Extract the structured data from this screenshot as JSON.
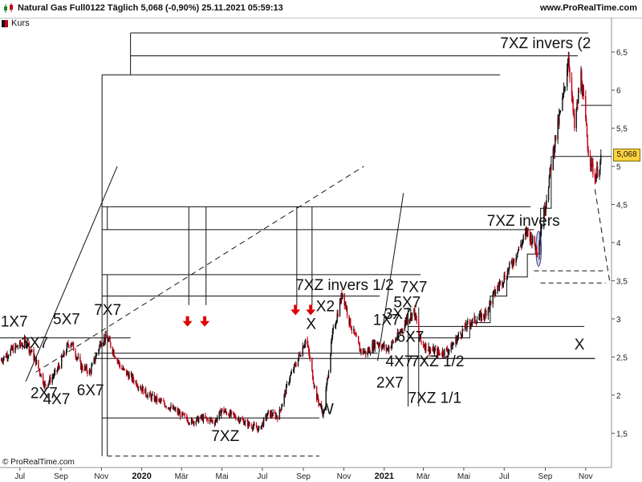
{
  "header": {
    "title": "Natural Gas Full0122 Täglich 5,068 (-0,90%) 25.11.2021 05:59:13",
    "site": "www.ProRealTime.com",
    "icon": "candlestick-chart-icon"
  },
  "legend": {
    "label": "Kurs"
  },
  "footer": {
    "copyright": "© ProRealTime.com"
  },
  "colors": {
    "up": "#111111",
    "down": "#c00014",
    "lines": "#111111",
    "marker": "#dd0000",
    "badge": "#ffd23f"
  },
  "chart_data": {
    "type": "candlestick",
    "title": "Natural Gas Full0122 Täglich",
    "last_price": "5,068",
    "x_range": [
      "2019-06-01",
      "2021-12-10"
    ],
    "ylim": [
      1.05,
      6.95
    ],
    "y_ticks": [
      {
        "v": 1.5,
        "label": "1,5"
      },
      {
        "v": 2,
        "label": "2"
      },
      {
        "v": 2.5,
        "label": "2,5"
      },
      {
        "v": 3,
        "label": "3"
      },
      {
        "v": 3.5,
        "label": "3,5"
      },
      {
        "v": 4,
        "label": "4"
      },
      {
        "v": 4.5,
        "label": "4,5"
      },
      {
        "v": 5,
        "label": "5"
      },
      {
        "v": 5.5,
        "label": "5,5"
      },
      {
        "v": 6,
        "label": "6"
      },
      {
        "v": 6.5,
        "label": "6,5"
      }
    ],
    "x_ticks": [
      {
        "date": "2019-07-01",
        "label": "Jul",
        "bold": false
      },
      {
        "date": "2019-09-01",
        "label": "Sep",
        "bold": false
      },
      {
        "date": "2019-11-01",
        "label": "Nov",
        "bold": false
      },
      {
        "date": "2020-01-01",
        "label": "2020",
        "bold": true
      },
      {
        "date": "2020-03-01",
        "label": "Mär",
        "bold": false
      },
      {
        "date": "2020-05-01",
        "label": "Mai",
        "bold": false
      },
      {
        "date": "2020-07-01",
        "label": "Jul",
        "bold": false
      },
      {
        "date": "2020-09-01",
        "label": "Sep",
        "bold": false
      },
      {
        "date": "2020-11-01",
        "label": "Nov",
        "bold": false
      },
      {
        "date": "2021-01-01",
        "label": "2021",
        "bold": true
      },
      {
        "date": "2021-03-01",
        "label": "Mär",
        "bold": false
      },
      {
        "date": "2021-05-01",
        "label": "Mai",
        "bold": false
      },
      {
        "date": "2021-07-01",
        "label": "Jul",
        "bold": false
      },
      {
        "date": "2021-09-01",
        "label": "Sep",
        "bold": false
      },
      {
        "date": "2021-11-01",
        "label": "Nov",
        "bold": false
      }
    ],
    "price_path": [
      [
        "2019-06-01",
        2.45
      ],
      [
        "2019-06-20",
        2.6
      ],
      [
        "2019-07-10",
        2.7
      ],
      [
        "2019-07-25",
        2.45
      ],
      [
        "2019-08-08",
        2.12
      ],
      [
        "2019-08-25",
        2.3
      ],
      [
        "2019-09-15",
        2.72
      ],
      [
        "2019-10-01",
        2.38
      ],
      [
        "2019-10-15",
        2.3
      ],
      [
        "2019-11-01",
        2.72
      ],
      [
        "2019-11-10",
        2.75
      ],
      [
        "2019-12-01",
        2.35
      ],
      [
        "2019-12-20",
        2.2
      ],
      [
        "2020-01-10",
        2.0
      ],
      [
        "2020-02-01",
        1.9
      ],
      [
        "2020-02-20",
        1.8
      ],
      [
        "2020-03-15",
        1.65
      ],
      [
        "2020-04-01",
        1.7
      ],
      [
        "2020-04-20",
        1.65
      ],
      [
        "2020-05-01",
        1.8
      ],
      [
        "2020-05-20",
        1.72
      ],
      [
        "2020-06-10",
        1.62
      ],
      [
        "2020-06-26",
        1.55
      ],
      [
        "2020-07-10",
        1.76
      ],
      [
        "2020-07-25",
        1.72
      ],
      [
        "2020-08-10",
        2.2
      ],
      [
        "2020-08-25",
        2.5
      ],
      [
        "2020-09-05",
        2.75
      ],
      [
        "2020-09-20",
        2.0
      ],
      [
        "2020-10-01",
        1.75
      ],
      [
        "2020-10-15",
        2.8
      ],
      [
        "2020-10-30",
        3.35
      ],
      [
        "2020-11-10",
        2.95
      ],
      [
        "2020-11-25",
        2.6
      ],
      [
        "2020-12-05",
        2.55
      ],
      [
        "2020-12-20",
        2.7
      ],
      [
        "2021-01-05",
        2.6
      ],
      [
        "2021-01-20",
        2.75
      ],
      [
        "2021-02-05",
        3.0
      ],
      [
        "2021-02-15",
        3.1
      ],
      [
        "2021-02-25",
        2.7
      ],
      [
        "2021-03-10",
        2.6
      ],
      [
        "2021-03-25",
        2.55
      ],
      [
        "2021-04-10",
        2.6
      ],
      [
        "2021-04-25",
        2.8
      ],
      [
        "2021-05-10",
        2.95
      ],
      [
        "2021-06-01",
        3.05
      ],
      [
        "2021-06-20",
        3.4
      ],
      [
        "2021-07-05",
        3.6
      ],
      [
        "2021-07-25",
        3.95
      ],
      [
        "2021-08-05",
        4.15
      ],
      [
        "2021-08-20",
        3.9
      ],
      [
        "2021-09-01",
        4.5
      ],
      [
        "2021-09-15",
        5.3
      ],
      [
        "2021-09-28",
        5.9
      ],
      [
        "2021-10-06",
        6.45
      ],
      [
        "2021-10-15",
        5.5
      ],
      [
        "2021-10-25",
        6.2
      ],
      [
        "2021-11-05",
        5.2
      ],
      [
        "2021-11-15",
        4.85
      ],
      [
        "2021-11-24",
        5.07
      ]
    ],
    "annotations": [
      {
        "text": "1X7",
        "date": "2019-06-02",
        "price": 2.9,
        "anchor": "start"
      },
      {
        "text": "3X7",
        "date": "2019-07-03",
        "price": 2.62,
        "anchor": "start"
      },
      {
        "text": "2X7",
        "date": "2019-07-17",
        "price": 1.96,
        "anchor": "start"
      },
      {
        "text": "4X7",
        "date": "2019-08-05",
        "price": 1.88,
        "anchor": "start"
      },
      {
        "text": "5X7",
        "date": "2019-08-20",
        "price": 2.93,
        "anchor": "start"
      },
      {
        "text": "6X7",
        "date": "2019-09-25",
        "price": 2.0,
        "anchor": "start"
      },
      {
        "text": "7X7",
        "date": "2019-10-21",
        "price": 3.05,
        "anchor": "start"
      },
      {
        "text": "7XZ",
        "date": "2020-04-15",
        "price": 1.4,
        "anchor": "start"
      },
      {
        "text": "7XZ invers 1/2",
        "date": "2020-08-20",
        "price": 3.38,
        "anchor": "start"
      },
      {
        "text": "X",
        "date": "2020-09-05",
        "price": 2.87,
        "anchor": "start"
      },
      {
        "text": "X2",
        "date": "2020-09-20",
        "price": 3.1,
        "anchor": "start"
      },
      {
        "text": "W",
        "date": "2020-09-25",
        "price": 1.75,
        "anchor": "start"
      },
      {
        "text": "1X7",
        "date": "2020-12-15",
        "price": 2.92,
        "anchor": "start"
      },
      {
        "text": "3X7",
        "date": "2021-01-01",
        "price": 3.0,
        "anchor": "start"
      },
      {
        "text": "5X7",
        "date": "2021-01-15",
        "price": 3.15,
        "anchor": "start"
      },
      {
        "text": "7X7",
        "date": "2021-01-25",
        "price": 3.35,
        "anchor": "start"
      },
      {
        "text": "6X7",
        "date": "2021-01-20",
        "price": 2.7,
        "anchor": "start"
      },
      {
        "text": "2X7",
        "date": "2020-12-20",
        "price": 2.1,
        "anchor": "start"
      },
      {
        "text": "4X7",
        "date": "2021-01-03",
        "price": 2.38,
        "anchor": "start"
      },
      {
        "text": "7XZ 1/2",
        "date": "2021-02-10",
        "price": 2.38,
        "anchor": "start"
      },
      {
        "text": "7XZ 1/1",
        "date": "2021-02-06",
        "price": 1.9,
        "anchor": "start"
      },
      {
        "text": "7XZ invers",
        "date": "2021-06-05",
        "price": 4.22,
        "anchor": "start"
      },
      {
        "text": "7XZ invers (2",
        "date": "2021-06-25",
        "price": 6.55,
        "anchor": "start"
      },
      {
        "text": "X",
        "date": "2021-10-15",
        "price": 2.6,
        "anchor": "start"
      }
    ],
    "arrows": [
      {
        "date": "2020-03-10",
        "price": 2.95
      },
      {
        "date": "2020-04-05",
        "price": 2.95
      },
      {
        "date": "2020-08-20",
        "price": 3.1
      },
      {
        "date": "2020-09-12",
        "price": 3.1
      }
    ],
    "hlines": [
      {
        "d1": "2019-06-01",
        "d2": "2019-12-15",
        "y": 2.75,
        "dash": false
      },
      {
        "d1": "2019-10-21",
        "d2": "2020-12-22",
        "y": 2.55,
        "dash": false
      },
      {
        "d1": "2019-10-21",
        "d2": "2021-11-15",
        "y": 2.48,
        "dash": false
      },
      {
        "d1": "2019-11-02",
        "d2": "2021-06-25",
        "y": 6.2,
        "dash": false
      },
      {
        "d1": "2019-12-15",
        "d2": "2021-10-20",
        "y": 6.45,
        "dash": false
      },
      {
        "d1": "2019-12-15",
        "d2": "2021-11-05",
        "y": 6.75,
        "dash": false
      },
      {
        "d1": "2019-11-02",
        "d2": "2021-08-10",
        "y": 4.47,
        "dash": false
      },
      {
        "d1": "2019-11-02",
        "d2": "2021-08-15",
        "y": 4.17,
        "dash": false
      },
      {
        "d1": "2019-11-02",
        "d2": "2021-02-25",
        "y": 3.58,
        "dash": false
      },
      {
        "d1": "2019-11-02",
        "d2": "2020-12-25",
        "y": 3.3,
        "dash": false
      },
      {
        "d1": "2019-11-02",
        "d2": "2020-09-25",
        "y": 1.7,
        "dash": false
      },
      {
        "d1": "2019-11-10",
        "d2": "2020-09-25",
        "y": 1.2,
        "dash": true
      },
      {
        "d1": "2021-02-06",
        "d2": "2021-10-30",
        "y": 2.9,
        "dash": false
      },
      {
        "d1": "2021-02-06",
        "d2": "2021-11-15",
        "y": 2.48,
        "dash": false
      },
      {
        "d1": "2021-08-15",
        "d2": "2021-12-01",
        "y": 3.63,
        "dash": true
      },
      {
        "d1": "2021-08-25",
        "d2": "2021-12-01",
        "y": 3.47,
        "dash": true
      },
      {
        "d1": "2021-10-15",
        "d2": "2021-12-10",
        "y": 5.13,
        "dash": false
      },
      {
        "d1": "2021-10-25",
        "d2": "2021-12-10",
        "y": 5.8,
        "dash": false
      }
    ],
    "vlines": [
      {
        "d": "2019-11-02",
        "y1": 1.2,
        "y2": 6.2
      },
      {
        "d": "2019-11-10",
        "y1": 1.2,
        "y2": 3.58
      },
      {
        "d": "2019-12-15",
        "y1": 6.2,
        "y2": 6.75
      },
      {
        "d": "2019-11-10",
        "y1": 4.17,
        "y2": 4.47
      },
      {
        "d": "2020-03-12",
        "y1": 3.18,
        "y2": 4.47
      },
      {
        "d": "2020-04-07",
        "y1": 3.18,
        "y2": 4.47
      },
      {
        "d": "2020-08-22",
        "y1": 3.18,
        "y2": 4.47
      },
      {
        "d": "2020-09-14",
        "y1": 3.18,
        "y2": 4.47
      },
      {
        "d": "2021-02-06",
        "y1": 1.85,
        "y2": 3.15
      },
      {
        "d": "2021-02-22",
        "y1": 1.85,
        "y2": 3.15
      }
    ],
    "trend_lines": [
      {
        "d1": "2019-07-10",
        "p1": 2.18,
        "d2": "2019-11-25",
        "p2": 5.0,
        "dash": false
      },
      {
        "d1": "2019-07-25",
        "p1": 2.3,
        "d2": "2020-12-01",
        "p2": 5.0,
        "dash": true
      },
      {
        "d1": "2020-12-22",
        "p1": 2.45,
        "d2": "2021-01-30",
        "p2": 4.65,
        "dash": false
      },
      {
        "d1": "2021-11-15",
        "p1": 4.7,
        "d2": "2021-12-08",
        "p2": 3.45,
        "dash": true
      }
    ],
    "step_line": [
      [
        "2021-02-06",
        2.75
      ],
      [
        "2021-05-10",
        2.75
      ],
      [
        "2021-05-10",
        2.95
      ],
      [
        "2021-06-10",
        2.95
      ],
      [
        "2021-06-10",
        3.3
      ],
      [
        "2021-07-05",
        3.3
      ],
      [
        "2021-07-05",
        3.55
      ],
      [
        "2021-08-05",
        3.55
      ],
      [
        "2021-08-05",
        3.85
      ],
      [
        "2021-08-25",
        3.85
      ],
      [
        "2021-08-25",
        4.45
      ],
      [
        "2021-09-10",
        4.45
      ],
      [
        "2021-09-10",
        5.13
      ],
      [
        "2021-10-15",
        5.13
      ]
    ],
    "ellipse": {
      "date": "2021-08-22",
      "price": 3.92,
      "rx_days": 4,
      "ry_price": 0.23
    }
  }
}
